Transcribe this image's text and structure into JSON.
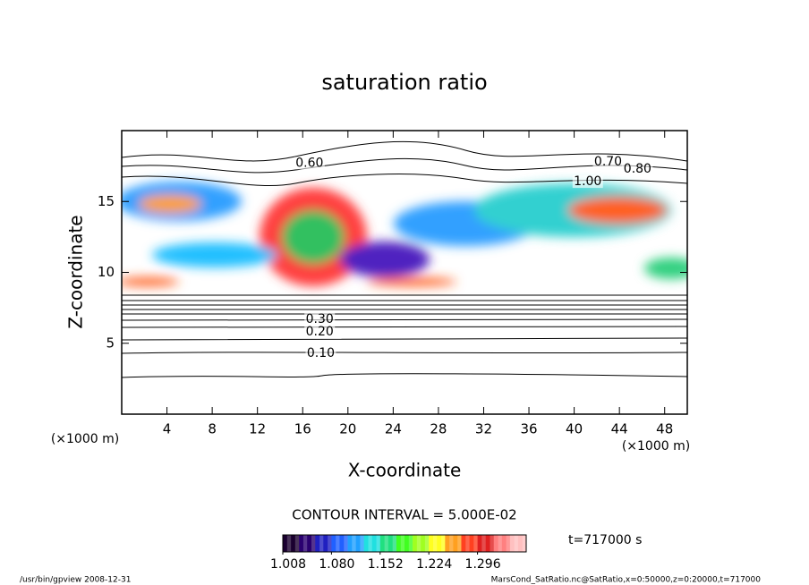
{
  "chart_data": {
    "type": "contour",
    "title": "saturation ratio",
    "x_label": "X-coordinate",
    "y_label": "Z-coordinate",
    "x_unit": "(×1000 m)",
    "y_unit": "(×1000 m)",
    "xlim": [
      0,
      50
    ],
    "xticks": [
      4,
      8,
      12,
      16,
      20,
      24,
      28,
      32,
      36,
      40,
      44,
      48
    ],
    "ylim": [
      0,
      20
    ],
    "yticks": [
      5,
      10,
      15
    ],
    "contour_interval": "CONTOUR INTERVAL = 5.000E-02",
    "contour_labels": [
      {
        "value": 0.6,
        "label": "0.60",
        "x": 16.6,
        "z": 17.7
      },
      {
        "value": 0.7,
        "label": "0.70",
        "x": 43.0,
        "z": 17.8
      },
      {
        "value": 0.8,
        "label": "0.80",
        "x": 45.6,
        "z": 17.3
      },
      {
        "value": 1.0,
        "label": "1.00",
        "x": 41.2,
        "z": 16.4
      },
      {
        "value": 0.3,
        "label": "0.30",
        "x": 17.5,
        "z": 6.7
      },
      {
        "value": 0.2,
        "label": "0.20",
        "x": 17.5,
        "z": 5.8
      },
      {
        "value": 0.1,
        "label": "0.10",
        "x": 17.6,
        "z": 4.3
      }
    ],
    "colorbar": {
      "lim": [
        1.008,
        1.368
      ],
      "ticks": [
        {
          "value": 1.008,
          "label": "1.008"
        },
        {
          "value": 1.08,
          "label": "1.080"
        },
        1.152,
        1.224,
        1.296
      ],
      "colors": [
        "#1a0030",
        "#2a0070",
        "#2020c0",
        "#2060ff",
        "#20a0ff",
        "#20e0e0",
        "#20e080",
        "#40ff20",
        "#a0ff20",
        "#ffff20",
        "#ffa020",
        "#ff4020",
        "#e02020",
        "#ff8080",
        "#ffc0c0"
      ]
    },
    "time": "t=717000 s",
    "footer_left": "/usr/bin/gpview   2008-12-31",
    "footer_right": "MarsCond_SatRatio.nc@SatRatio,x=0:50000,z=0:20000,t=717000"
  }
}
